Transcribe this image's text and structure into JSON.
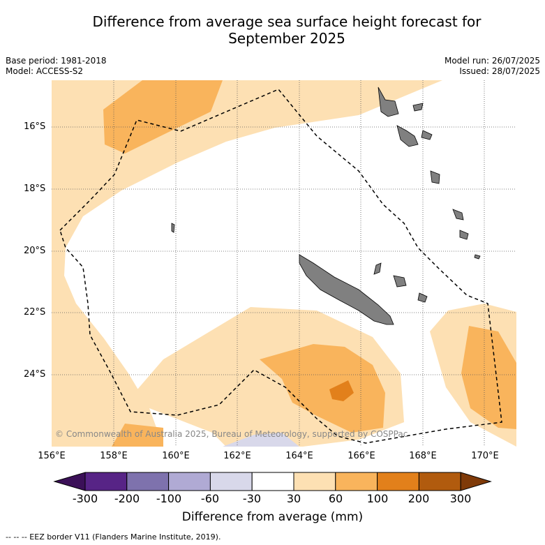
{
  "title_line1": "Difference from average sea surface height forecast for",
  "title_line2": "September 2025",
  "meta_left": {
    "base_period": "Base period: 1981-2018",
    "model": "Model: ACCESS-S2"
  },
  "meta_right": {
    "model_run": "Model run: 26/07/2025",
    "issued": "Issued: 28/07/2025"
  },
  "lat_labels": [
    "16°S",
    "18°S",
    "20°S",
    "22°S",
    "24°S"
  ],
  "lon_labels": [
    "156°E",
    "158°E",
    "160°E",
    "162°E",
    "164°E",
    "166°E",
    "168°E",
    "170°E"
  ],
  "colorbar": {
    "ticks": [
      "-300",
      "-200",
      "-100",
      "-60",
      "-30",
      "30",
      "60",
      "100",
      "200",
      "300"
    ],
    "colors": [
      "#3b1058",
      "#572486",
      "#7e72ad",
      "#b0aad4",
      "#d8d8ea",
      "#ffffff",
      "#fde0b3",
      "#f9b45c",
      "#e2801b",
      "#b15b0e",
      "#7f3a08"
    ],
    "label": "Difference from average (mm)"
  },
  "map": {
    "land_color": "#808080",
    "ocean_color": "#ffffff",
    "shade_light": "#fde0b3",
    "shade_mid": "#f9b45c",
    "shade_dark": "#e2801b",
    "shade_neg": "#d8d8ea"
  },
  "copyright": "© Commonwealth of Australia 2025, Bureau of Meteorology, supported by COSPPac",
  "footnote": "-- -- -- EEZ border V11 (Flanders Marine Institute, 2019)."
}
